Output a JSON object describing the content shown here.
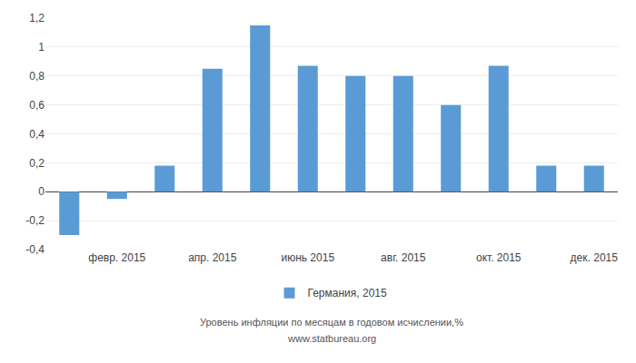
{
  "chart_data": {
    "type": "bar",
    "categories": [
      null,
      "февр. 2015",
      null,
      "апр. 2015",
      null,
      "июнь 2015",
      null,
      "авг. 2015",
      null,
      "окт. 2015",
      null,
      "дек. 2015"
    ],
    "series": [
      {
        "name": "Германия, 2015",
        "color": "#5b9bd5",
        "values": [
          -0.3,
          -0.05,
          0.18,
          0.85,
          1.15,
          0.87,
          0.8,
          0.8,
          0.6,
          0.87,
          0.18,
          0.18
        ]
      }
    ],
    "ylim": [
      -0.4,
      1.2
    ],
    "yticks": [
      {
        "value": -0.4,
        "label": "-0,4"
      },
      {
        "value": -0.2,
        "label": "-0,2"
      },
      0,
      {
        "value": 0.2,
        "label": "0,2"
      },
      {
        "value": 0.4,
        "label": "0,4"
      },
      {
        "value": 0.6,
        "label": "0,6"
      },
      {
        "value": 0.8,
        "label": "0,8"
      },
      1,
      {
        "value": 1.2,
        "label": "1,2"
      }
    ],
    "grid": true,
    "legend": "bottom",
    "annotations": [
      "Уровень инфляции по месяцам в годовом исчислении,%",
      "www.statbureau.org"
    ]
  }
}
